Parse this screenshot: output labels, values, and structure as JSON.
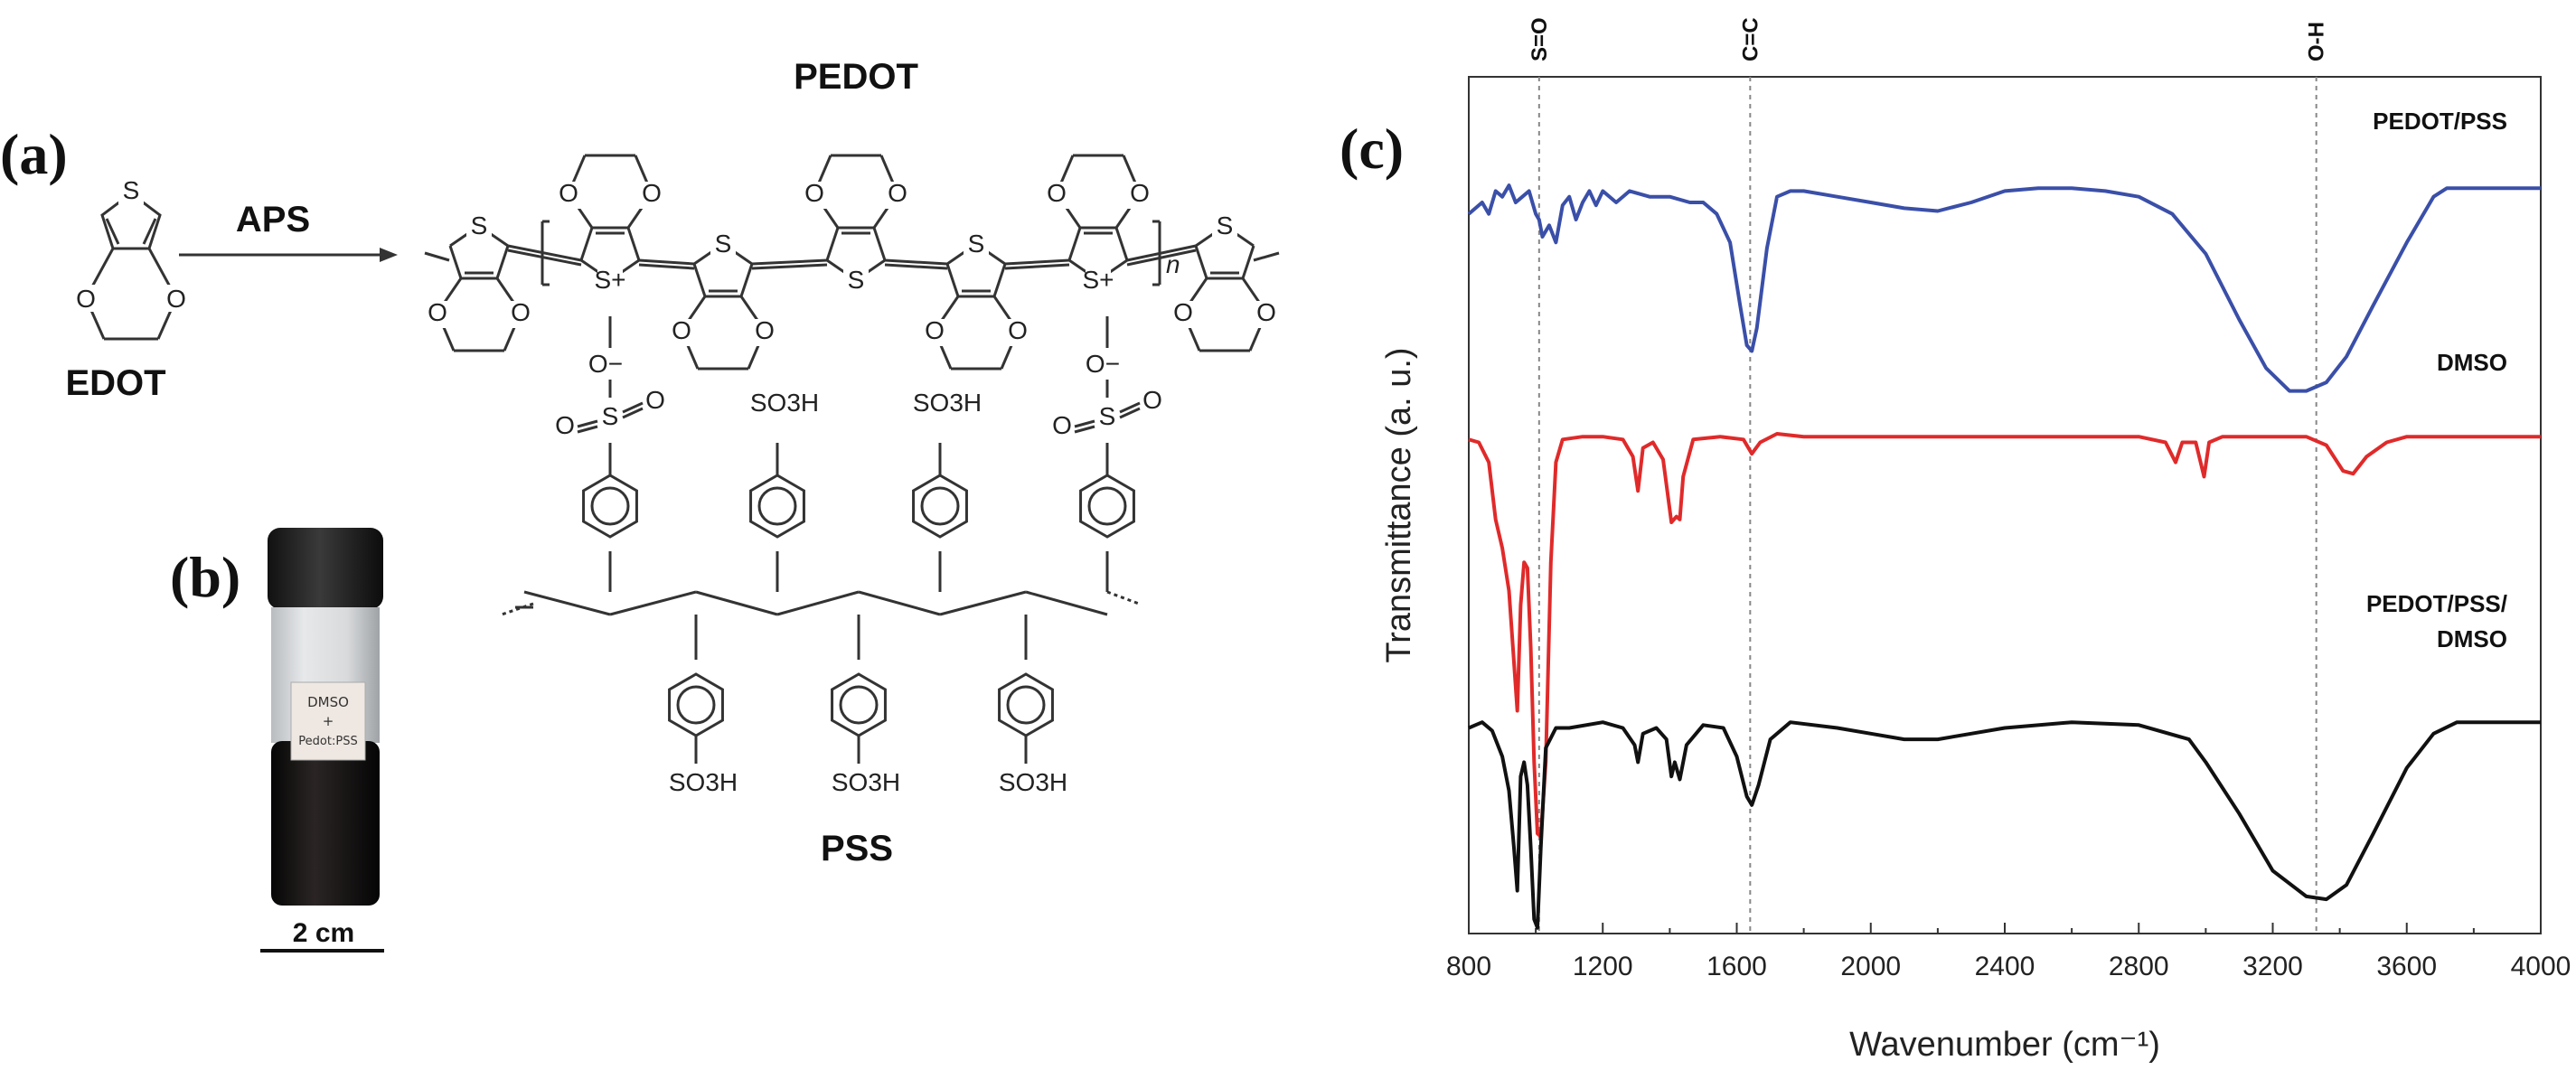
{
  "panels": {
    "a": "(a)",
    "b": "(b)",
    "c": "(c)"
  },
  "scheme": {
    "monomer": "EDOT",
    "reagent": "APS",
    "polymer": "PEDOT",
    "dopant": "PSS",
    "atoms": {
      "s": "S",
      "s_plus": "S+",
      "o": "O",
      "o_minus": "O−",
      "n": "n",
      "so3h": "SO3H"
    }
  },
  "photo": {
    "vial_label_line1": "DMSO",
    "vial_label_line2": "+",
    "vial_label_line3": "Pedot:PSS",
    "scale_bar": "2 cm"
  },
  "chart_data": {
    "type": "line",
    "xlabel": "Wavenumber (cm⁻¹)",
    "ylabel": "Transmittance (a. u.)",
    "xlim": [
      800,
      4000
    ],
    "ylim": [
      0,
      3
    ],
    "x_ticks": [
      "800",
      "1200",
      "1600",
      "2000",
      "2400",
      "2800",
      "3200",
      "3600",
      "4000"
    ],
    "annotations": [
      {
        "label": "S=O",
        "x": 1010
      },
      {
        "label": "C=C",
        "x": 1640
      },
      {
        "label": "O-H",
        "x": 3330
      }
    ],
    "series": [
      {
        "name": "PEDOT/PSS",
        "color": "#3a4fa8",
        "points": [
          [
            800,
            2.52
          ],
          [
            820,
            2.54
          ],
          [
            840,
            2.56
          ],
          [
            860,
            2.52
          ],
          [
            880,
            2.6
          ],
          [
            900,
            2.58
          ],
          [
            920,
            2.62
          ],
          [
            940,
            2.56
          ],
          [
            960,
            2.58
          ],
          [
            980,
            2.6
          ],
          [
            1000,
            2.52
          ],
          [
            1010,
            2.5
          ],
          [
            1020,
            2.44
          ],
          [
            1040,
            2.48
          ],
          [
            1060,
            2.42
          ],
          [
            1080,
            2.55
          ],
          [
            1100,
            2.58
          ],
          [
            1120,
            2.5
          ],
          [
            1140,
            2.56
          ],
          [
            1160,
            2.6
          ],
          [
            1180,
            2.55
          ],
          [
            1200,
            2.6
          ],
          [
            1240,
            2.56
          ],
          [
            1280,
            2.6
          ],
          [
            1340,
            2.58
          ],
          [
            1400,
            2.58
          ],
          [
            1460,
            2.56
          ],
          [
            1500,
            2.56
          ],
          [
            1540,
            2.52
          ],
          [
            1580,
            2.42
          ],
          [
            1610,
            2.2
          ],
          [
            1630,
            2.06
          ],
          [
            1645,
            2.04
          ],
          [
            1660,
            2.12
          ],
          [
            1690,
            2.4
          ],
          [
            1720,
            2.58
          ],
          [
            1760,
            2.6
          ],
          [
            1800,
            2.6
          ],
          [
            1900,
            2.58
          ],
          [
            2000,
            2.56
          ],
          [
            2100,
            2.54
          ],
          [
            2200,
            2.53
          ],
          [
            2300,
            2.56
          ],
          [
            2400,
            2.6
          ],
          [
            2500,
            2.61
          ],
          [
            2600,
            2.61
          ],
          [
            2700,
            2.6
          ],
          [
            2800,
            2.58
          ],
          [
            2900,
            2.52
          ],
          [
            3000,
            2.38
          ],
          [
            3100,
            2.15
          ],
          [
            3180,
            1.98
          ],
          [
            3250,
            1.9
          ],
          [
            3300,
            1.9
          ],
          [
            3360,
            1.93
          ],
          [
            3420,
            2.02
          ],
          [
            3500,
            2.2
          ],
          [
            3600,
            2.42
          ],
          [
            3680,
            2.58
          ],
          [
            3720,
            2.61
          ],
          [
            3800,
            2.61
          ],
          [
            3900,
            2.61
          ],
          [
            4000,
            2.61
          ]
        ]
      },
      {
        "name": "DMSO",
        "color": "#e02a2a",
        "points": [
          [
            800,
            1.73
          ],
          [
            830,
            1.72
          ],
          [
            860,
            1.65
          ],
          [
            880,
            1.45
          ],
          [
            900,
            1.35
          ],
          [
            920,
            1.2
          ],
          [
            935,
            0.95
          ],
          [
            945,
            0.78
          ],
          [
            955,
            1.15
          ],
          [
            965,
            1.3
          ],
          [
            975,
            1.28
          ],
          [
            985,
            1.0
          ],
          [
            995,
            0.6
          ],
          [
            1005,
            0.35
          ],
          [
            1015,
            0.34
          ],
          [
            1030,
            0.6
          ],
          [
            1045,
            1.3
          ],
          [
            1060,
            1.65
          ],
          [
            1080,
            1.73
          ],
          [
            1140,
            1.74
          ],
          [
            1200,
            1.74
          ],
          [
            1260,
            1.73
          ],
          [
            1290,
            1.67
          ],
          [
            1305,
            1.55
          ],
          [
            1320,
            1.7
          ],
          [
            1350,
            1.72
          ],
          [
            1380,
            1.66
          ],
          [
            1405,
            1.44
          ],
          [
            1420,
            1.46
          ],
          [
            1430,
            1.45
          ],
          [
            1440,
            1.6
          ],
          [
            1470,
            1.73
          ],
          [
            1550,
            1.74
          ],
          [
            1620,
            1.73
          ],
          [
            1645,
            1.68
          ],
          [
            1670,
            1.72
          ],
          [
            1720,
            1.75
          ],
          [
            1800,
            1.74
          ],
          [
            2000,
            1.74
          ],
          [
            2200,
            1.74
          ],
          [
            2500,
            1.74
          ],
          [
            2800,
            1.74
          ],
          [
            2880,
            1.72
          ],
          [
            2910,
            1.65
          ],
          [
            2930,
            1.72
          ],
          [
            2970,
            1.72
          ],
          [
            2995,
            1.6
          ],
          [
            3010,
            1.72
          ],
          [
            3050,
            1.74
          ],
          [
            3300,
            1.74
          ],
          [
            3360,
            1.71
          ],
          [
            3410,
            1.62
          ],
          [
            3440,
            1.61
          ],
          [
            3480,
            1.67
          ],
          [
            3540,
            1.72
          ],
          [
            3600,
            1.74
          ],
          [
            3800,
            1.74
          ],
          [
            4000,
            1.74
          ]
        ]
      },
      {
        "name": "PEDOT/PSS/\nDMSO",
        "color": "#111111",
        "points": [
          [
            800,
            0.72
          ],
          [
            820,
            0.73
          ],
          [
            840,
            0.74
          ],
          [
            870,
            0.71
          ],
          [
            900,
            0.62
          ],
          [
            920,
            0.5
          ],
          [
            935,
            0.3
          ],
          [
            945,
            0.15
          ],
          [
            955,
            0.55
          ],
          [
            965,
            0.6
          ],
          [
            975,
            0.52
          ],
          [
            985,
            0.3
          ],
          [
            995,
            0.05
          ],
          [
            1005,
            0.02
          ],
          [
            1015,
            0.3
          ],
          [
            1030,
            0.65
          ],
          [
            1060,
            0.72
          ],
          [
            1100,
            0.72
          ],
          [
            1200,
            0.74
          ],
          [
            1260,
            0.72
          ],
          [
            1295,
            0.66
          ],
          [
            1305,
            0.6
          ],
          [
            1320,
            0.7
          ],
          [
            1360,
            0.72
          ],
          [
            1390,
            0.68
          ],
          [
            1405,
            0.55
          ],
          [
            1415,
            0.6
          ],
          [
            1430,
            0.54
          ],
          [
            1450,
            0.66
          ],
          [
            1500,
            0.73
          ],
          [
            1560,
            0.72
          ],
          [
            1600,
            0.62
          ],
          [
            1630,
            0.48
          ],
          [
            1645,
            0.45
          ],
          [
            1665,
            0.52
          ],
          [
            1700,
            0.68
          ],
          [
            1760,
            0.74
          ],
          [
            1900,
            0.72
          ],
          [
            2000,
            0.7
          ],
          [
            2100,
            0.68
          ],
          [
            2200,
            0.68
          ],
          [
            2300,
            0.7
          ],
          [
            2400,
            0.72
          ],
          [
            2600,
            0.74
          ],
          [
            2800,
            0.73
          ],
          [
            2950,
            0.68
          ],
          [
            3000,
            0.6
          ],
          [
            3100,
            0.42
          ],
          [
            3200,
            0.22
          ],
          [
            3300,
            0.13
          ],
          [
            3360,
            0.12
          ],
          [
            3420,
            0.17
          ],
          [
            3500,
            0.35
          ],
          [
            3600,
            0.58
          ],
          [
            3680,
            0.7
          ],
          [
            3750,
            0.74
          ],
          [
            3850,
            0.74
          ],
          [
            4000,
            0.74
          ]
        ]
      }
    ]
  }
}
